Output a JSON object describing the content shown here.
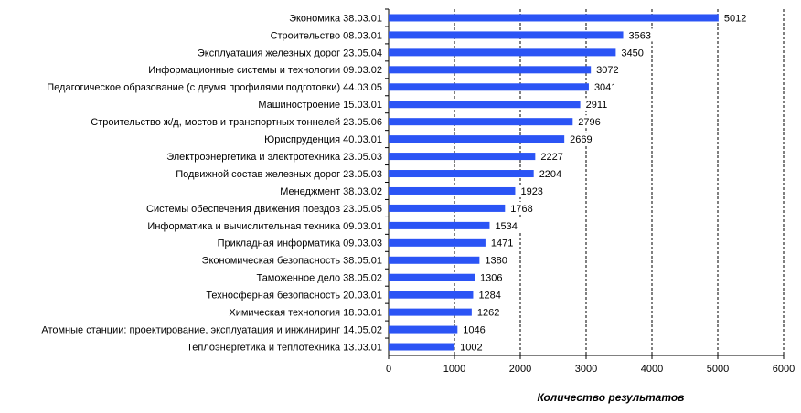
{
  "chart_data": {
    "type": "hbar",
    "x_label": "Количество  результатов",
    "categories": [
      "Экономика 38.03.01",
      "Строительство 08.03.01",
      "Эксплуатация железных дорог 23.05.04",
      "Информационные системы и технологии 09.03.02",
      "Педагогическое образование (с двумя профилями подготовки) 44.03.05",
      "Машиностроение 15.03.01",
      "Строительство ж/д, мостов и транспортных тоннелей 23.05.06",
      "Юриспруденция 40.03.01",
      "Электроэнергетика и электротехника 23.05.03",
      "Подвижной состав железных дорог 23.05.03",
      "Менеджмент 38.03.02",
      "Системы обеспечения движения поездов 23.05.05",
      "Информатика и вычислительная техника 09.03.01",
      "Прикладная информатика 09.03.03",
      "Экономическая безопасность 38.05.01",
      "Таможенное дело 38.05.02",
      "Техносферная безопасность 20.03.01",
      "Химическая технология 18.03.01",
      "Атомные станции: проектирование, эксплуатация и инжиниринг 14.05.02",
      "Теплоэнергетика и теплотехника 13.03.01"
    ],
    "values": [
      5012,
      3563,
      3450,
      3072,
      3041,
      2911,
      2796,
      2669,
      2227,
      2204,
      1923,
      1768,
      1534,
      1471,
      1380,
      1306,
      1284,
      1262,
      1046,
      1002
    ],
    "color": "#2b54f5",
    "xlim": [
      0,
      6000
    ],
    "xticks": [
      0,
      1000,
      2000,
      3000,
      4000,
      5000,
      6000
    ],
    "grid": true
  }
}
